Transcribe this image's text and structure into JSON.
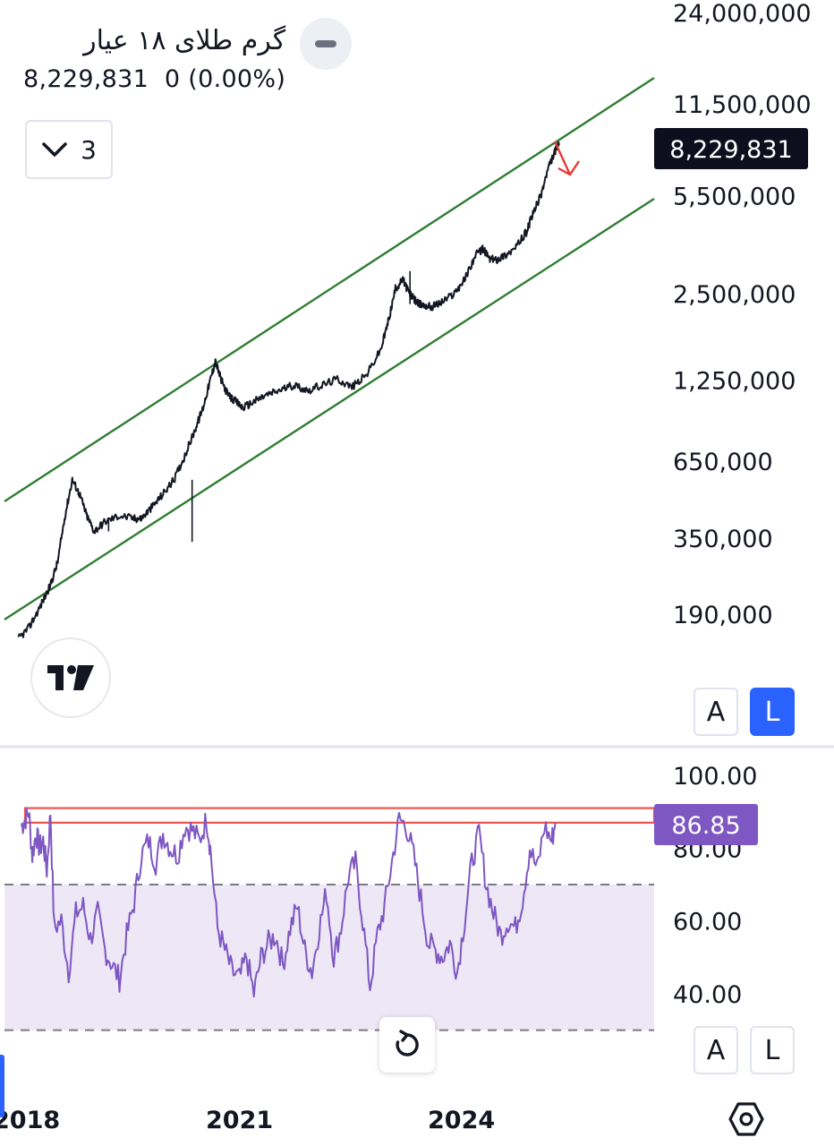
{
  "legend": {
    "title": "گرم طلای ۱۸ عیار",
    "last_value": "8,229,831",
    "change": "0 (0.00%)",
    "indicator_count": "3"
  },
  "colors": {
    "price_line": "#131722",
    "channel": "#2e7d32",
    "arrow": "#e53935",
    "rsi_line": "#7e57c2",
    "rsi_band": "#ede7f6",
    "highlight_box": "#ef5350",
    "price_tag_bg": "#0e0e1e",
    "rsi_tag_bg": "#7e57c2",
    "accent": "#2962ff"
  },
  "price_scale": {
    "ticks": [
      "24,000,000",
      "11,500,000",
      "5,500,000",
      "2,500,000",
      "1,250,000",
      "650,000",
      "350,000",
      "190,000"
    ],
    "last_price_tag": "8,229,831",
    "mode_buttons": [
      "A",
      "L"
    ],
    "active_mode": "L"
  },
  "rsi_scale": {
    "ticks": [
      "100.00",
      "80.00",
      "60.00",
      "40.00"
    ],
    "last_value_tag": "86.85",
    "mode_buttons": [
      "A",
      "L"
    ]
  },
  "time_axis": {
    "labels": [
      "2018",
      "2021",
      "2024"
    ]
  },
  "chart_data": [
    {
      "type": "line",
      "scale": "log",
      "x_range": [
        2017.8,
        2025.6
      ],
      "y_range": [
        140000,
        30000000
      ],
      "x": [
        2017.9,
        2018.05,
        2018.2,
        2018.35,
        2018.45,
        2018.55,
        2018.65,
        2018.75,
        2018.85,
        2018.95,
        2019.1,
        2019.3,
        2019.5,
        2019.6,
        2019.75,
        2019.9,
        2020.05,
        2020.2,
        2020.35,
        2020.45,
        2020.55,
        2020.62,
        2020.7,
        2020.8,
        2020.9,
        2021.0,
        2021.15,
        2021.3,
        2021.5,
        2021.7,
        2021.9,
        2022.1,
        2022.3,
        2022.5,
        2022.7,
        2022.9,
        2023.0,
        2023.1,
        2023.2,
        2023.28,
        2023.35,
        2023.42,
        2023.5,
        2023.6,
        2023.75,
        2023.9,
        2024.05,
        2024.2,
        2024.3,
        2024.4,
        2024.5,
        2024.6,
        2024.75,
        2024.9,
        2025.0,
        2025.1,
        2025.2,
        2025.3,
        2025.35
      ],
      "y": [
        155000,
        170000,
        200000,
        240000,
        290000,
        420000,
        560000,
        500000,
        420000,
        370000,
        400000,
        420000,
        410000,
        410000,
        450000,
        500000,
        560000,
        680000,
        850000,
        1000000,
        1250000,
        1450000,
        1250000,
        1100000,
        1050000,
        1000000,
        1050000,
        1100000,
        1150000,
        1200000,
        1150000,
        1200000,
        1260000,
        1180000,
        1300000,
        1600000,
        2000000,
        2600000,
        2800000,
        2550000,
        2400000,
        2300000,
        2280000,
        2250000,
        2350000,
        2500000,
        2800000,
        3400000,
        3600000,
        3300000,
        3300000,
        3400000,
        3600000,
        4100000,
        4800000,
        5500000,
        6800000,
        7900000,
        8229831
      ]
    },
    {
      "type": "line",
      "y_range": [
        30,
        100
      ],
      "x_range": [
        2017.8,
        2025.6
      ],
      "bands": [
        30,
        70
      ],
      "highlight_zone": [
        87,
        91
      ],
      "x": [
        2017.95,
        2018.0,
        2018.05,
        2018.1,
        2018.15,
        2018.2,
        2018.25,
        2018.3,
        2018.35,
        2018.4,
        2018.5,
        2018.6,
        2018.7,
        2018.8,
        2018.9,
        2019.0,
        2019.1,
        2019.2,
        2019.3,
        2019.4,
        2019.5,
        2019.6,
        2019.7,
        2019.8,
        2019.9,
        2020.0,
        2020.1,
        2020.2,
        2020.3,
        2020.4,
        2020.5,
        2020.55,
        2020.65,
        2020.75,
        2020.85,
        2020.95,
        2021.05,
        2021.15,
        2021.25,
        2021.35,
        2021.45,
        2021.55,
        2021.65,
        2021.75,
        2021.85,
        2021.95,
        2022.05,
        2022.15,
        2022.25,
        2022.35,
        2022.45,
        2022.55,
        2022.65,
        2022.75,
        2022.85,
        2022.95,
        2023.05,
        2023.15,
        2023.25,
        2023.35,
        2023.45,
        2023.55,
        2023.65,
        2023.75,
        2023.85,
        2023.95,
        2024.05,
        2024.15,
        2024.25,
        2024.35,
        2024.45,
        2024.55,
        2024.65,
        2024.75,
        2024.85,
        2024.95,
        2025.05,
        2025.15,
        2025.25,
        2025.3
      ],
      "y": [
        86,
        88,
        90,
        78,
        84,
        80,
        82,
        74,
        90,
        58,
        60,
        46,
        62,
        64,
        55,
        62,
        52,
        48,
        44,
        56,
        65,
        78,
        82,
        76,
        84,
        80,
        78,
        86,
        85,
        82,
        88,
        80,
        58,
        52,
        46,
        44,
        50,
        40,
        50,
        54,
        56,
        48,
        58,
        64,
        52,
        46,
        58,
        68,
        50,
        58,
        72,
        76,
        60,
        42,
        56,
        64,
        76,
        88,
        86,
        78,
        66,
        54,
        52,
        50,
        54,
        46,
        60,
        76,
        84,
        70,
        62,
        56,
        60,
        58,
        66,
        80,
        74,
        86,
        82,
        86.85
      ]
    }
  ]
}
